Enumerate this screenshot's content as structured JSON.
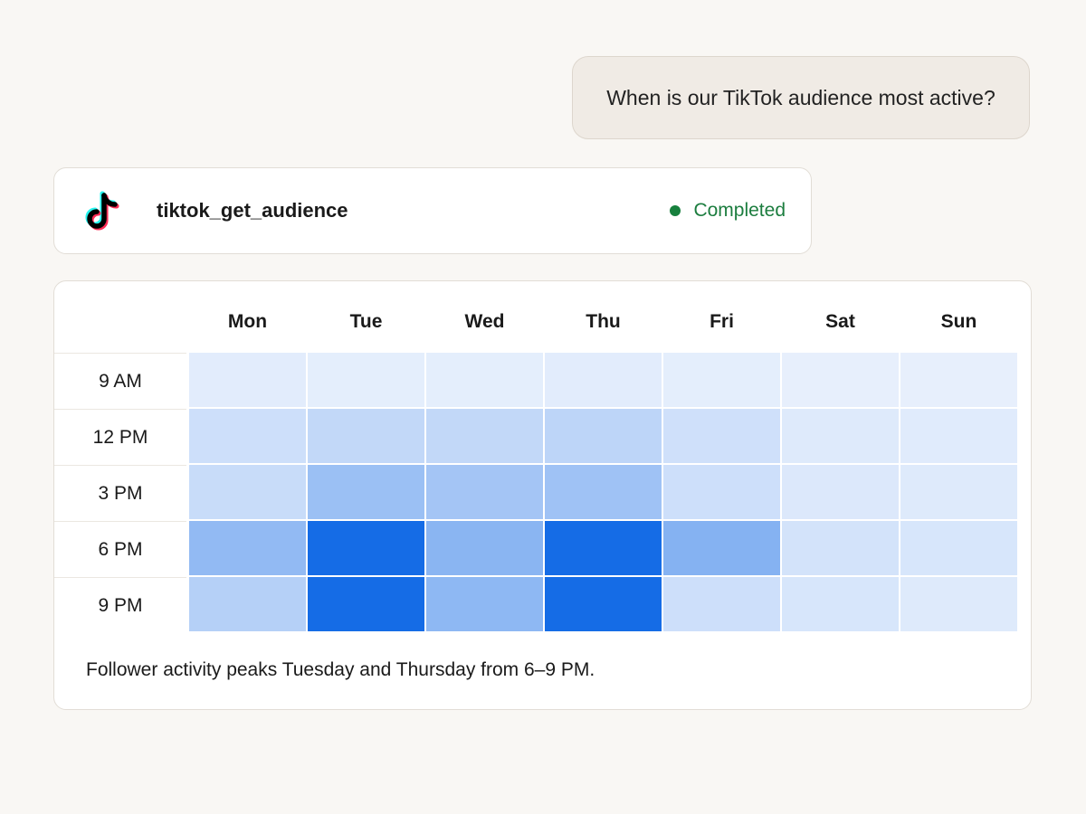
{
  "user_message": "When is our TikTok audience most active?",
  "tool_call": {
    "icon": "tiktok-logo-icon",
    "name": "tiktok_get_audience",
    "status": "Completed",
    "status_color": "#17803d"
  },
  "heatmap": {
    "days": [
      "Mon",
      "Tue",
      "Wed",
      "Thu",
      "Fri",
      "Sat",
      "Sun"
    ],
    "times": [
      "9 AM",
      "12 PM",
      "3 PM",
      "6 PM",
      "9 PM"
    ],
    "color_low": "#edf3fd",
    "color_high": "#156ce6",
    "intensity": [
      [
        0.05,
        0.04,
        0.04,
        0.05,
        0.04,
        0.03,
        0.03
      ],
      [
        0.15,
        0.2,
        0.2,
        0.22,
        0.14,
        0.07,
        0.06
      ],
      [
        0.17,
        0.38,
        0.34,
        0.36,
        0.15,
        0.08,
        0.07
      ],
      [
        0.42,
        1.0,
        0.46,
        1.0,
        0.48,
        0.12,
        0.1
      ],
      [
        0.26,
        1.0,
        0.44,
        1.0,
        0.15,
        0.1,
        0.07
      ]
    ]
  },
  "summary": "Follower activity peaks Tuesday and Thursday from 6–9 PM."
}
